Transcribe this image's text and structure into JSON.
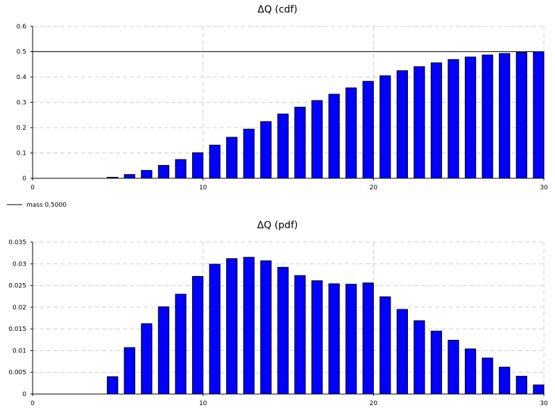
{
  "chart_data": [
    {
      "type": "bar",
      "title": "ΔQ (cdf)",
      "xlim": [
        0,
        30
      ],
      "ylim": [
        0,
        0.6
      ],
      "x_ticks": [
        0,
        10,
        20,
        30
      ],
      "y_ticks": [
        "0",
        "0.1",
        "0.2",
        "0.3",
        "0.4",
        "0.5",
        "0.6"
      ],
      "grid": true,
      "x": [
        5,
        6,
        7,
        8,
        9,
        10,
        11,
        12,
        13,
        14,
        15,
        16,
        17,
        18,
        19,
        20,
        21,
        22,
        23,
        24,
        25,
        26,
        27,
        28,
        29,
        30
      ],
      "values": [
        0.004,
        0.0148,
        0.031,
        0.051,
        0.074,
        0.101,
        0.131,
        0.162,
        0.194,
        0.224,
        0.254,
        0.281,
        0.307,
        0.332,
        0.357,
        0.383,
        0.405,
        0.425,
        0.441,
        0.456,
        0.469,
        0.479,
        0.487,
        0.493,
        0.497,
        0.5
      ],
      "reference_line": {
        "y": 0.5,
        "label": "mass 0.5000"
      },
      "legend": {
        "entries": [
          "mass 0.5000"
        ],
        "placement": "bottom-left"
      }
    },
    {
      "type": "bar",
      "title": "ΔQ (pdf)",
      "xlim": [
        0,
        30
      ],
      "ylim": [
        0,
        0.035
      ],
      "x_ticks": [
        0,
        10,
        20,
        30
      ],
      "y_ticks": [
        "0",
        "0.005",
        "0.01",
        "0.015",
        "0.02",
        "0.025",
        "0.03",
        "0.035"
      ],
      "grid": true,
      "x": [
        5,
        6,
        7,
        8,
        9,
        10,
        11,
        12,
        13,
        14,
        15,
        16,
        17,
        18,
        19,
        20,
        21,
        22,
        23,
        24,
        25,
        26,
        27,
        28,
        29,
        30
      ],
      "values": [
        0.004,
        0.0107,
        0.0162,
        0.0201,
        0.023,
        0.0271,
        0.0299,
        0.0312,
        0.0315,
        0.0307,
        0.0292,
        0.0273,
        0.0261,
        0.0254,
        0.0253,
        0.0256,
        0.0224,
        0.0195,
        0.0169,
        0.0145,
        0.0124,
        0.0104,
        0.0083,
        0.0062,
        0.0041,
        0.0021
      ]
    }
  ]
}
